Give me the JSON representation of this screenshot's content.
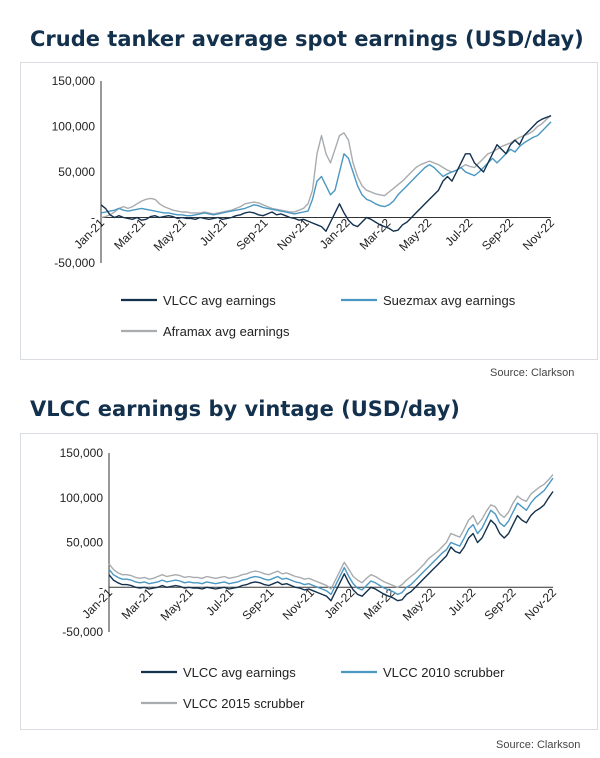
{
  "chart_data": [
    {
      "type": "line",
      "title": "Crude tanker average spot earnings (USD/day)",
      "source": "Source: Clarkson",
      "ylim": [
        -50000,
        150000
      ],
      "yticks": [
        -50000,
        0,
        50000,
        100000,
        150000
      ],
      "ytick_labels": [
        "-50,000",
        "-",
        "50,000",
        "100,000",
        "150,000"
      ],
      "xlim": [
        0,
        100
      ],
      "x_tick_labels": [
        "Jan-21",
        "Mar-21",
        "May-21",
        "Jul-21",
        "Sep-21",
        "Nov-21",
        "Jan-22",
        "Mar-22",
        "May-22",
        "Jul-22",
        "Sep-22",
        "Nov-22"
      ],
      "legend": "bottom",
      "grid": false,
      "x": [
        0,
        1,
        2,
        3,
        4,
        5,
        6,
        7,
        8,
        9,
        10,
        11,
        12,
        13,
        14,
        15,
        16,
        17,
        18,
        19,
        20,
        21,
        22,
        23,
        24,
        25,
        26,
        27,
        28,
        29,
        30,
        31,
        32,
        33,
        34,
        35,
        36,
        37,
        38,
        39,
        40,
        41,
        42,
        43,
        44,
        45,
        46,
        47,
        48,
        49,
        50,
        51,
        52,
        53,
        54,
        55,
        56,
        57,
        58,
        59,
        60,
        61,
        62,
        63,
        64,
        65,
        66,
        67,
        68,
        69,
        70,
        71,
        72,
        73,
        74,
        75,
        76,
        77,
        78,
        79,
        80,
        81,
        82,
        83,
        84,
        85,
        86,
        87,
        88,
        89,
        90,
        91,
        92,
        93,
        94,
        95,
        96,
        97,
        98,
        99,
        100
      ],
      "series": [
        {
          "name": "VLCC avg earnings",
          "color": "#13314d",
          "values": [
            14000,
            10000,
            3000,
            0,
            2000,
            0,
            -1000,
            -2000,
            0,
            -3000,
            -2000,
            1000,
            2000,
            0,
            1000,
            2000,
            1000,
            -1000,
            0,
            -1000,
            -1000,
            -2000,
            0,
            -1000,
            -2000,
            -1000,
            0,
            -2000,
            -1000,
            0,
            2000,
            3000,
            5000,
            6000,
            5000,
            3000,
            2000,
            4000,
            6000,
            3000,
            4000,
            2000,
            0,
            -1000,
            -3000,
            -2000,
            -4000,
            -6000,
            -8000,
            -10000,
            -15000,
            -5000,
            5000,
            15000,
            5000,
            -3000,
            -8000,
            -10000,
            -5000,
            0,
            -2000,
            -5000,
            -8000,
            -10000,
            -12000,
            -15000,
            -14000,
            -8000,
            -5000,
            0,
            5000,
            10000,
            15000,
            20000,
            25000,
            30000,
            40000,
            45000,
            40000,
            50000,
            60000,
            70000,
            70000,
            60000,
            55000,
            50000,
            60000,
            70000,
            80000,
            75000,
            70000,
            80000,
            85000,
            80000,
            90000,
            95000,
            100000,
            105000,
            108000,
            110000,
            112000
          ]
        },
        {
          "name": "Suezmax avg earnings",
          "color": "#4a97c2",
          "values": [
            5000,
            6000,
            7000,
            8000,
            10000,
            8000,
            7000,
            8000,
            9000,
            10000,
            9000,
            8000,
            7000,
            6000,
            5000,
            5000,
            4000,
            3000,
            3000,
            2000,
            2000,
            3000,
            4000,
            5000,
            4000,
            3000,
            4000,
            5000,
            6000,
            7000,
            8000,
            9000,
            10000,
            12000,
            14000,
            13000,
            11000,
            10000,
            9000,
            8000,
            7000,
            6000,
            5000,
            4000,
            5000,
            6000,
            7000,
            20000,
            40000,
            45000,
            35000,
            25000,
            30000,
            50000,
            70000,
            65000,
            50000,
            35000,
            25000,
            20000,
            18000,
            15000,
            13000,
            12000,
            14000,
            18000,
            25000,
            30000,
            35000,
            40000,
            45000,
            50000,
            55000,
            58000,
            55000,
            50000,
            45000,
            48000,
            50000,
            52000,
            55000,
            50000,
            48000,
            46000,
            50000,
            55000,
            60000,
            65000,
            60000,
            65000,
            70000,
            75000,
            72000,
            78000,
            82000,
            85000,
            88000,
            90000,
            95000,
            100000,
            105000
          ]
        },
        {
          "name": "Aframax avg earnings",
          "color": "#a8acaf",
          "values": [
            0,
            1000,
            3000,
            6000,
            10000,
            12000,
            10000,
            12000,
            15000,
            18000,
            20000,
            21000,
            20000,
            15000,
            12000,
            10000,
            8000,
            7000,
            6000,
            6000,
            5000,
            5000,
            5000,
            6000,
            5000,
            4000,
            5000,
            6000,
            7000,
            8000,
            10000,
            12000,
            15000,
            16000,
            17000,
            16000,
            14000,
            12000,
            10000,
            9000,
            8000,
            7000,
            6000,
            6000,
            8000,
            10000,
            15000,
            30000,
            70000,
            90000,
            70000,
            60000,
            75000,
            90000,
            93000,
            85000,
            60000,
            45000,
            35000,
            30000,
            28000,
            26000,
            25000,
            24000,
            28000,
            32000,
            36000,
            40000,
            45000,
            50000,
            55000,
            58000,
            60000,
            62000,
            60000,
            58000,
            55000,
            52000,
            50000,
            52000,
            55000,
            58000,
            56000,
            55000,
            60000,
            65000,
            70000,
            72000,
            75000,
            78000,
            80000,
            82000,
            85000,
            88000,
            90000,
            92000,
            95000,
            100000,
            103000,
            108000,
            112000
          ]
        }
      ]
    },
    {
      "type": "line",
      "title": "VLCC earnings by vintage (USD/day)",
      "source": "Source: Clarkson",
      "ylim": [
        -50000,
        150000
      ],
      "yticks": [
        -50000,
        0,
        50000,
        100000,
        150000
      ],
      "ytick_labels": [
        "-50,000",
        "-",
        "50,000",
        "100,000",
        "150,000"
      ],
      "xlim": [
        0,
        100
      ],
      "x_tick_labels": [
        "Jan-21",
        "Mar-21",
        "May-21",
        "Jul-21",
        "Sep-21",
        "Nov-21",
        "Jan-22",
        "Mar-22",
        "May-22",
        "Jul-22",
        "Sep-22",
        "Nov-22"
      ],
      "legend": "bottom",
      "grid": false,
      "x": [
        0,
        1,
        2,
        3,
        4,
        5,
        6,
        7,
        8,
        9,
        10,
        11,
        12,
        13,
        14,
        15,
        16,
        17,
        18,
        19,
        20,
        21,
        22,
        23,
        24,
        25,
        26,
        27,
        28,
        29,
        30,
        31,
        32,
        33,
        34,
        35,
        36,
        37,
        38,
        39,
        40,
        41,
        42,
        43,
        44,
        45,
        46,
        47,
        48,
        49,
        50,
        51,
        52,
        53,
        54,
        55,
        56,
        57,
        58,
        59,
        60,
        61,
        62,
        63,
        64,
        65,
        66,
        67,
        68,
        69,
        70,
        71,
        72,
        73,
        74,
        75,
        76,
        77,
        78,
        79,
        80,
        81,
        82,
        83,
        84,
        85,
        86,
        87,
        88,
        89,
        90,
        91,
        92,
        93,
        94,
        95,
        96,
        97,
        98,
        99,
        100
      ],
      "series": [
        {
          "name": "VLCC avg earnings",
          "color": "#13314d",
          "values": [
            14000,
            8000,
            5000,
            3000,
            3000,
            2000,
            0,
            -1000,
            0,
            -2000,
            -1000,
            0,
            2000,
            0,
            1000,
            2000,
            1000,
            -1000,
            0,
            -1000,
            -1000,
            -2000,
            0,
            -1000,
            -2000,
            -1000,
            0,
            -2000,
            -1000,
            0,
            2000,
            3000,
            5000,
            6000,
            5000,
            3000,
            2000,
            4000,
            6000,
            3000,
            4000,
            2000,
            0,
            -1000,
            -3000,
            -2000,
            -4000,
            -6000,
            -8000,
            -10000,
            -15000,
            -5000,
            5000,
            15000,
            5000,
            -3000,
            -8000,
            -10000,
            -5000,
            0,
            -2000,
            -5000,
            -8000,
            -10000,
            -12000,
            -15000,
            -14000,
            -8000,
            -5000,
            0,
            5000,
            10000,
            15000,
            20000,
            25000,
            30000,
            35000,
            45000,
            40000,
            38000,
            45000,
            55000,
            60000,
            50000,
            55000,
            65000,
            75000,
            70000,
            60000,
            55000,
            60000,
            70000,
            80000,
            75000,
            72000,
            80000,
            85000,
            88000,
            92000,
            100000,
            107000
          ]
        },
        {
          "name": "VLCC 2010 scrubber",
          "color": "#4a97c2",
          "values": [
            20000,
            14000,
            11000,
            9000,
            9000,
            8000,
            6000,
            5000,
            6000,
            4000,
            5000,
            6000,
            8000,
            6000,
            7000,
            8000,
            7000,
            5000,
            6000,
            5000,
            5000,
            4000,
            6000,
            5000,
            4000,
            5000,
            6000,
            4000,
            5000,
            6000,
            8000,
            9000,
            11000,
            12000,
            11000,
            9000,
            8000,
            10000,
            12000,
            9000,
            10000,
            8000,
            6000,
            5000,
            3000,
            4000,
            2000,
            0,
            -2000,
            -4000,
            -8000,
            2000,
            12000,
            22000,
            12000,
            4000,
            -1000,
            -3000,
            2000,
            7000,
            5000,
            2000,
            -1000,
            -3000,
            -5000,
            -8000,
            -6000,
            0,
            3000,
            8000,
            13000,
            18000,
            23000,
            28000,
            33000,
            38000,
            42000,
            50000,
            48000,
            46000,
            55000,
            65000,
            70000,
            60000,
            66000,
            76000,
            86000,
            82000,
            72000,
            68000,
            74000,
            84000,
            94000,
            90000,
            86000,
            94000,
            100000,
            104000,
            108000,
            115000,
            122000
          ]
        },
        {
          "name": "VLCC 2015 scrubber",
          "color": "#a8acaf",
          "values": [
            26000,
            20000,
            16000,
            14000,
            14000,
            13000,
            11000,
            10000,
            11000,
            9000,
            10000,
            12000,
            14000,
            12000,
            13000,
            14000,
            13000,
            11000,
            12000,
            11000,
            11000,
            10000,
            12000,
            11000,
            10000,
            11000,
            12000,
            10000,
            11000,
            12000,
            14000,
            15000,
            17000,
            18000,
            17000,
            15000,
            14000,
            16000,
            18000,
            15000,
            16000,
            14000,
            12000,
            11000,
            9000,
            10000,
            8000,
            6000,
            4000,
            2000,
            -2000,
            8000,
            18000,
            28000,
            20000,
            12000,
            8000,
            5000,
            10000,
            14000,
            12000,
            9000,
            6000,
            4000,
            2000,
            0,
            3000,
            8000,
            12000,
            16000,
            21000,
            26000,
            32000,
            36000,
            40000,
            45000,
            50000,
            60000,
            58000,
            56000,
            65000,
            75000,
            80000,
            70000,
            76000,
            85000,
            92000,
            90000,
            82000,
            78000,
            84000,
            94000,
            102000,
            98000,
            96000,
            104000,
            108000,
            112000,
            115000,
            120000,
            126000
          ]
        }
      ]
    }
  ]
}
